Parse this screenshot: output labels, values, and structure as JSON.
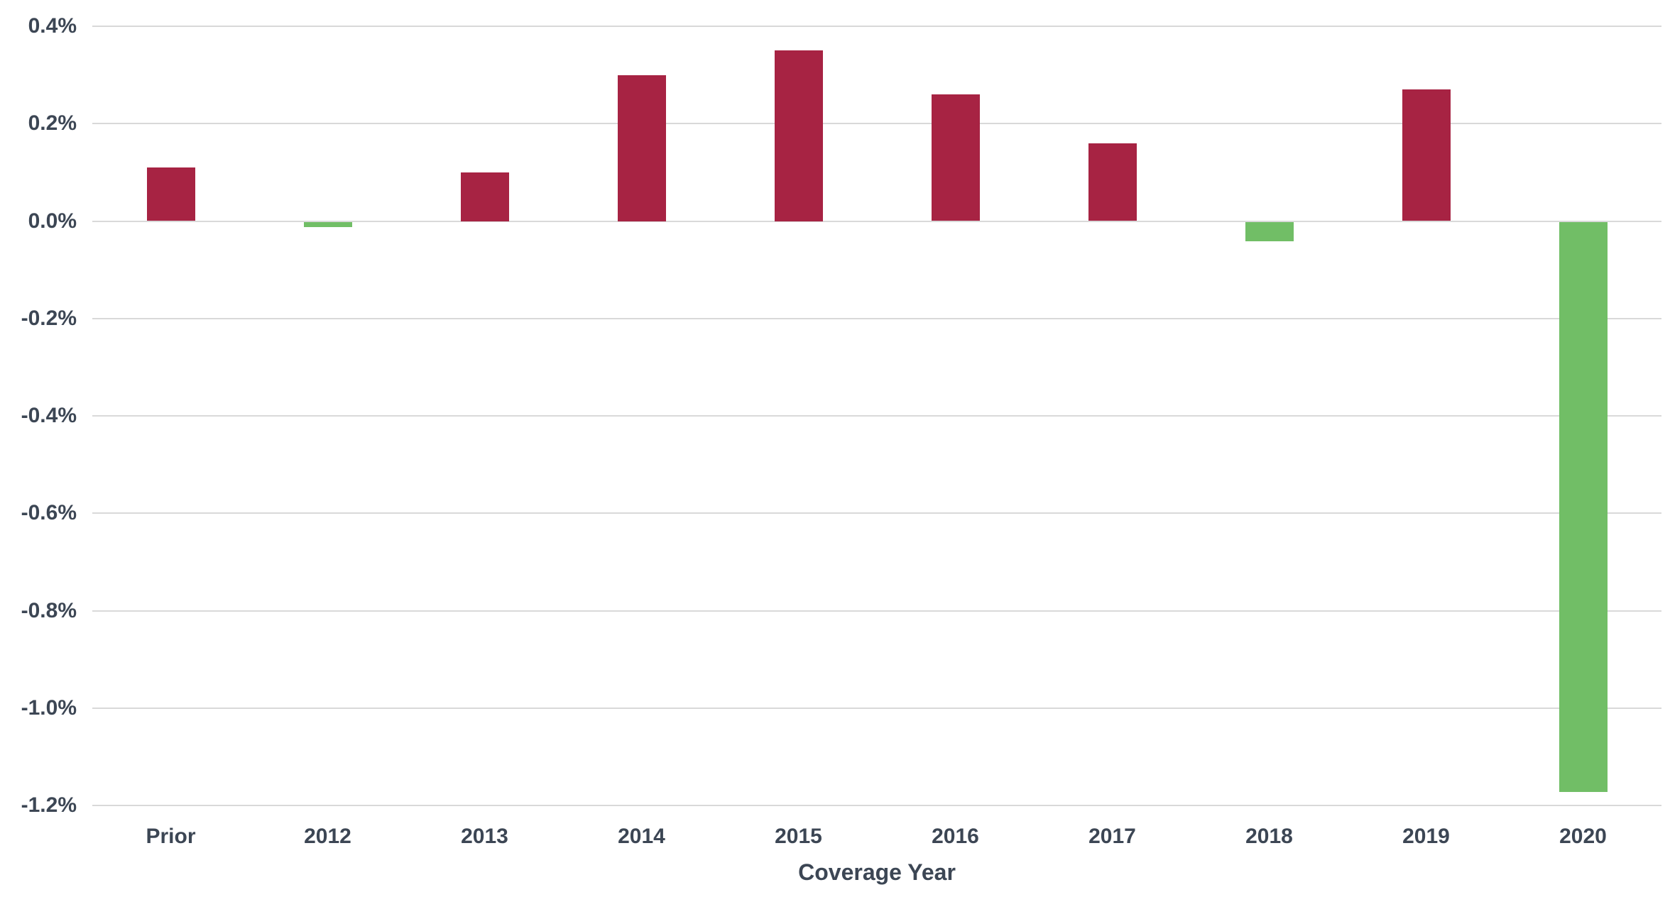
{
  "chart_data": {
    "type": "bar",
    "title": "",
    "xlabel": "Coverage Year",
    "ylabel": "",
    "categories": [
      "Prior",
      "2012",
      "2013",
      "2014",
      "2015",
      "2016",
      "2017",
      "2018",
      "2019",
      "2020"
    ],
    "values": [
      0.11,
      -0.01,
      0.1,
      0.3,
      0.35,
      0.26,
      0.16,
      -0.04,
      0.27,
      -1.17
    ],
    "value_unit": "%",
    "y_ticks": [
      "0.4%",
      "0.2%",
      "0.0%",
      "-0.2%",
      "-0.4%",
      "-0.6%",
      "-0.8%",
      "-1.0%",
      "-1.2%"
    ],
    "ylim": [
      -1.2,
      0.4
    ],
    "ytick_step": 0.2,
    "grid": true,
    "legend_position": "none",
    "colors": {
      "positive_bar": "#A72343",
      "negative_bar": "#71BE66",
      "text": "#3C4654",
      "gridline": "#D9D9D9",
      "background": "#FFFFFF"
    }
  }
}
